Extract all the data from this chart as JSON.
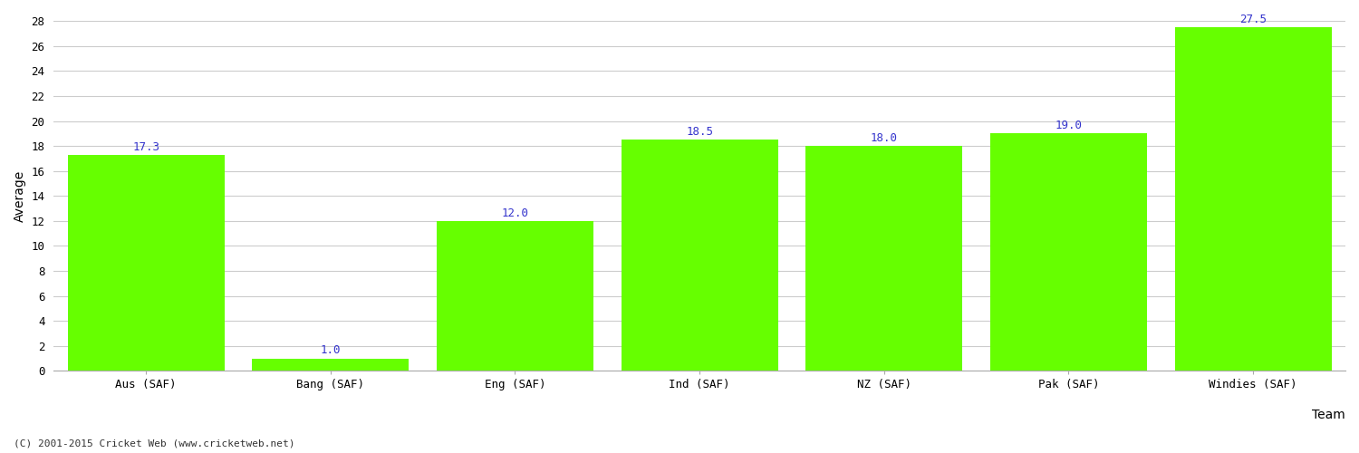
{
  "categories": [
    "Aus (SAF)",
    "Bang (SAF)",
    "Eng (SAF)",
    "Ind (SAF)",
    "NZ (SAF)",
    "Pak (SAF)",
    "Windies (SAF)"
  ],
  "values": [
    17.3,
    1.0,
    12.0,
    18.5,
    18.0,
    19.0,
    27.5
  ],
  "bar_color": "#66ff00",
  "bar_edge_color": "#66ff00",
  "label_color": "#3333cc",
  "xlabel": "Team",
  "ylabel": "Average",
  "ylim": [
    0,
    28
  ],
  "yticks": [
    0,
    2,
    4,
    6,
    8,
    10,
    12,
    14,
    16,
    18,
    20,
    22,
    24,
    26,
    28
  ],
  "grid_color": "#cccccc",
  "background_color": "#ffffff",
  "label_fontsize": 9,
  "axis_label_fontsize": 10,
  "tick_fontsize": 9,
  "footer_text": "(C) 2001-2015 Cricket Web (www.cricketweb.net)",
  "footer_fontsize": 8,
  "footer_color": "#333333"
}
